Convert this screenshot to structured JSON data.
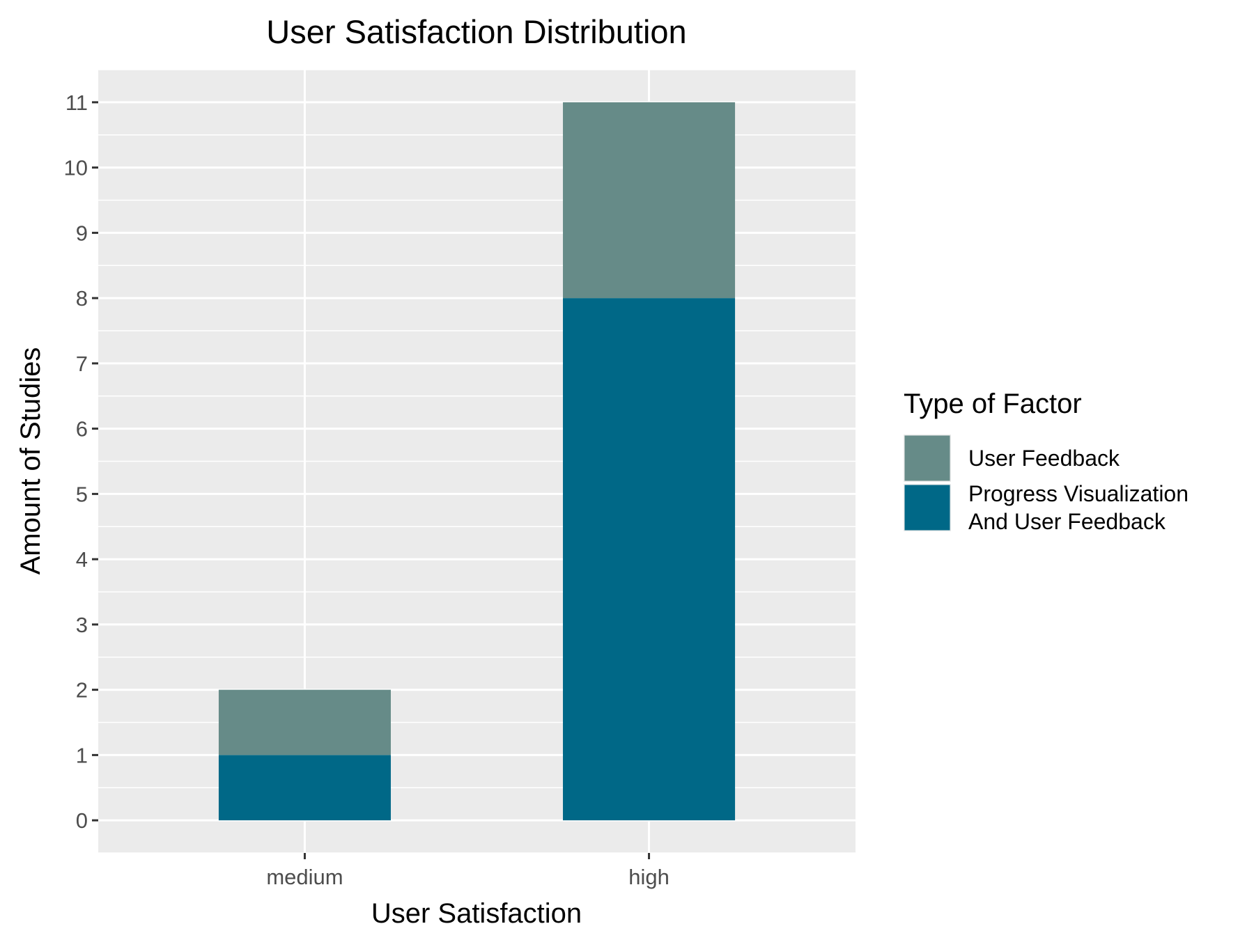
{
  "chart_data": {
    "type": "bar",
    "stacked": true,
    "title": "User Satisfaction Distribution",
    "xlabel": "User Satisfaction",
    "ylabel": "Amount of Studies",
    "categories": [
      "medium",
      "high"
    ],
    "series": [
      {
        "name": "Progress Visualization And User Feedback",
        "name_lines": [
          "Progress Visualization",
          "And User Feedback"
        ],
        "values": [
          1,
          8
        ],
        "color": "#006887"
      },
      {
        "name": "User Feedback",
        "name_lines": [
          "User Feedback"
        ],
        "values": [
          1,
          3
        ],
        "color": "#668b88"
      }
    ],
    "legend_title": "Type of Factor",
    "legend_order": [
      1,
      0
    ],
    "legend_position": "right",
    "ylim": [
      -0.5,
      11.5
    ],
    "yticks": [
      0,
      1,
      2,
      3,
      4,
      5,
      6,
      7,
      8,
      9,
      10,
      11
    ],
    "grid": true,
    "panel_background": "#ebebeb"
  }
}
